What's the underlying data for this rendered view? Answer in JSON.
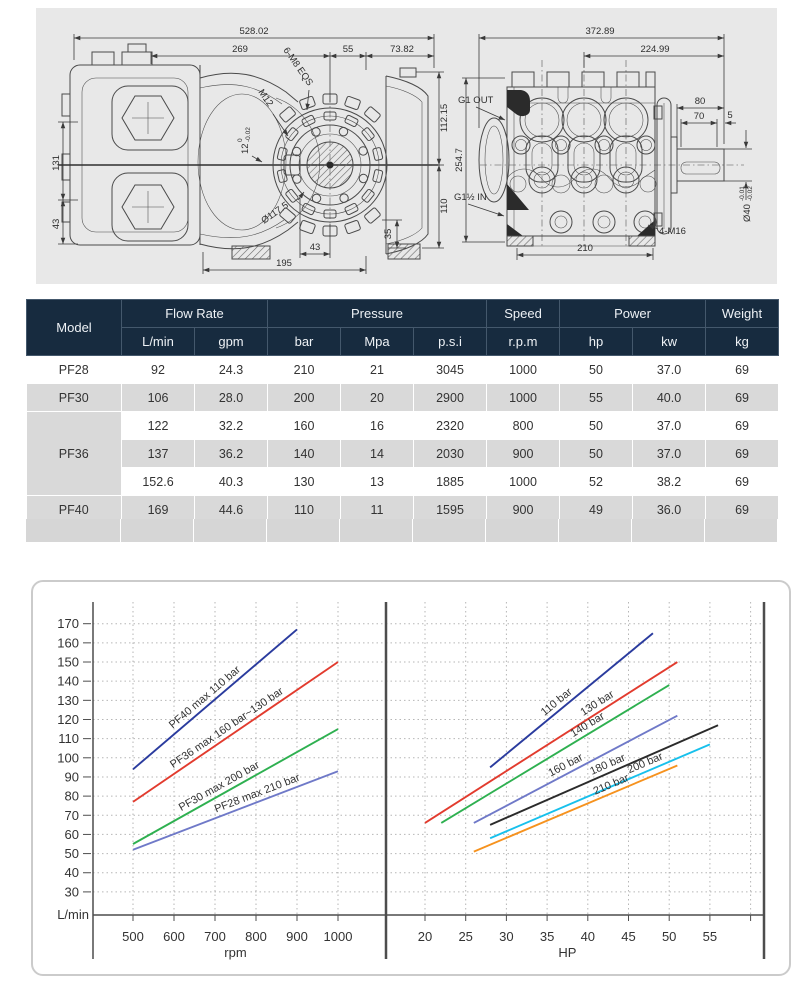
{
  "drawings": {
    "side_view": {
      "dims": {
        "total_length": "528.02",
        "crankcase_to_flange": "269",
        "flange_to_bell": "55",
        "bell_width": "73.82",
        "body_height": "131",
        "foot_height": "43",
        "top_to_center": "112.15",
        "center_to_bottom": "110",
        "foot_right": "35",
        "bolt_offset": "43",
        "mount_length": "195"
      },
      "labels": {
        "bolt_circle": "6-M8 EQS",
        "thread": "M12",
        "key_width": "12",
        "key_tol_upper": "0",
        "key_tol_lower": "-0.02",
        "flange_dia": "Ø117.5"
      }
    },
    "front_view": {
      "dims": {
        "total_width": "372.89",
        "body_width": "224.99",
        "total_height": "254.7",
        "shaft_len": "80",
        "shaft_key_len": "70",
        "shaft_tip": "5",
        "base_width": "210"
      },
      "labels": {
        "outlet": "G1 OUT",
        "inlet": "G1½ IN",
        "mount_thread": "4-M16",
        "shaft_dia": "Ø40",
        "shaft_tol_upper": "-0.01",
        "shaft_tol_lower": "-0.02"
      }
    }
  },
  "table": {
    "header": {
      "model": "Model",
      "flow_rate": "Flow Rate",
      "pressure": "Pressure",
      "speed": "Speed",
      "power": "Power",
      "weight": "Weight",
      "units": [
        "L/min",
        "gpm",
        "bar",
        "Mpa",
        "p.s.i",
        "r.p.m",
        "hp",
        "kw",
        "kg"
      ]
    },
    "rows": [
      {
        "model": "PF28",
        "values": [
          "92",
          "24.3",
          "210",
          "21",
          "3045",
          "1000",
          "50",
          "37.0",
          "69"
        ]
      },
      {
        "model": "PF30",
        "values": [
          "106",
          "28.0",
          "200",
          "20",
          "2900",
          "1000",
          "55",
          "40.0",
          "69"
        ]
      },
      {
        "model": "PF36",
        "values": [
          "122",
          "32.2",
          "160",
          "16",
          "2320",
          "800",
          "50",
          "37.0",
          "69"
        ]
      },
      {
        "model": "",
        "values": [
          "137",
          "36.2",
          "140",
          "14",
          "2030",
          "900",
          "50",
          "37.0",
          "69"
        ]
      },
      {
        "model": "",
        "values": [
          "152.6",
          "40.3",
          "130",
          "13",
          "1885",
          "1000",
          "52",
          "38.2",
          "69"
        ]
      },
      {
        "model": "PF40",
        "values": [
          "169",
          "44.6",
          "110",
          "11",
          "1595",
          "900",
          "49",
          "36.0",
          "69"
        ]
      }
    ]
  },
  "chart_data": [
    {
      "type": "line",
      "panel": "flow-vs-rpm",
      "title": "",
      "xlabel": "rpm",
      "ylabel": "L/min",
      "xlim": [
        500,
        1000
      ],
      "xticks": [
        500,
        600,
        700,
        800,
        900,
        1000
      ],
      "xgrid": [
        500,
        600,
        700,
        800,
        900,
        1000
      ],
      "ylim": [
        30,
        170
      ],
      "yticks": [
        30,
        40,
        50,
        60,
        70,
        80,
        90,
        100,
        110,
        120,
        130,
        140,
        150,
        160,
        170
      ],
      "grid": "dotted",
      "legend": "labels-on-lines",
      "series": [
        {
          "name": "PF40 max 110 bar",
          "color": "#2a3b9e",
          "points": [
            [
              500,
              94
            ],
            [
              900,
              167
            ]
          ],
          "label_t": 0.47
        },
        {
          "name": "PF36 max 160 bar~130 bar",
          "color": "#e23b2e",
          "points": [
            [
              500,
              77
            ],
            [
              1000,
              150
            ]
          ],
          "label_t": 0.48
        },
        {
          "name": "PF30 max 200 bar",
          "color": "#2eb050",
          "points": [
            [
              500,
              55
            ],
            [
              1000,
              115
            ]
          ],
          "label_t": 0.44
        },
        {
          "name": "PF28 max 210 bar",
          "color": "#6f79c8",
          "points": [
            [
              500,
              52
            ],
            [
              1000,
              93
            ]
          ],
          "label_t": 0.62
        }
      ]
    },
    {
      "type": "line",
      "panel": "flow-vs-hp",
      "title": "",
      "xlabel": "HP",
      "ylabel": "",
      "xlim": [
        20,
        55
      ],
      "xticks": [
        20,
        25,
        30,
        35,
        40,
        45,
        50,
        55
      ],
      "xgrid": [
        20,
        25,
        30,
        35,
        40,
        45,
        50,
        55,
        60
      ],
      "ylim": [
        30,
        170
      ],
      "yticks": [
        30,
        40,
        50,
        60,
        70,
        80,
        90,
        100,
        110,
        120,
        130,
        140,
        150,
        160,
        170
      ],
      "grid": "dotted",
      "legend": "labels-on-lines",
      "series": [
        {
          "name": "110 bar",
          "color": "#2a3b9e",
          "points": [
            [
              28,
              95
            ],
            [
              48,
              165
            ]
          ],
          "label_t": 0.44
        },
        {
          "name": "130 bar",
          "color": "#e23b2e",
          "points": [
            [
              20,
              66
            ],
            [
              51,
              150
            ]
          ],
          "label_t": 0.7
        },
        {
          "name": "140 bar",
          "color": "#2eb050",
          "points": [
            [
              22,
              66
            ],
            [
              50,
              138
            ]
          ],
          "label_t": 0.66
        },
        {
          "name": "160 bar",
          "color": "#6f79c8",
          "points": [
            [
              26,
              66
            ],
            [
              51,
              122
            ]
          ],
          "label_t": 0.47
        },
        {
          "name": "180 bar",
          "color": "#2b2b2b",
          "points": [
            [
              28,
              65
            ],
            [
              56,
              117
            ]
          ],
          "label_t": 0.53
        },
        {
          "name": "200 bar",
          "color": "#17c0ec",
          "points": [
            [
              28,
              58
            ],
            [
              55,
              107
            ]
          ],
          "label_t": 0.72
        },
        {
          "name": "210 bar",
          "color": "#f6921e",
          "points": [
            [
              26,
              51
            ],
            [
              51,
              96
            ]
          ],
          "label_t": 0.69
        }
      ]
    }
  ]
}
